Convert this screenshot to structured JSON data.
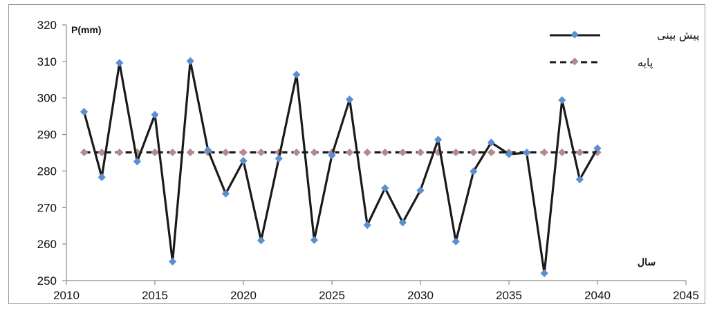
{
  "chart_data": {
    "type": "line",
    "title": "",
    "xlabel": "سال",
    "ylabel": "P(mm)",
    "xlim": [
      2010,
      2045
    ],
    "ylim": [
      250,
      320
    ],
    "xticks": [
      2010,
      2015,
      2020,
      2025,
      2030,
      2035,
      2040,
      2045
    ],
    "yticks": [
      250,
      260,
      270,
      280,
      290,
      300,
      310,
      320
    ],
    "grid": false,
    "legend_position": "top-right",
    "series": [
      {
        "name": "پیش بینی",
        "line_color": "#1a1a1a",
        "marker_color": "#5b8fd0",
        "line_style": "solid",
        "x": [
          2011,
          2012,
          2013,
          2014,
          2015,
          2016,
          2017,
          2018,
          2019,
          2020,
          2021,
          2022,
          2023,
          2024,
          2025,
          2026,
          2027,
          2028,
          2029,
          2030,
          2031,
          2032,
          2033,
          2034,
          2035,
          2036,
          2037,
          2038,
          2039,
          2040
        ],
        "values": [
          296.2,
          278.3,
          309.6,
          282.6,
          295.4,
          255.2,
          310.1,
          285.7,
          273.8,
          282.8,
          261.0,
          283.4,
          306.4,
          261.1,
          284.3,
          299.6,
          265.2,
          275.3,
          265.9,
          274.7,
          288.6,
          260.7,
          279.9,
          287.8,
          284.6,
          285.0,
          252.0,
          299.4,
          277.7,
          286.2
        ]
      },
      {
        "name": "پایه",
        "line_color": "#1a1a1a",
        "marker_color": "#b38a94",
        "line_style": "dashed",
        "x": [
          2011,
          2012,
          2013,
          2014,
          2015,
          2016,
          2017,
          2018,
          2019,
          2020,
          2021,
          2022,
          2023,
          2024,
          2025,
          2026,
          2027,
          2028,
          2029,
          2030,
          2031,
          2032,
          2033,
          2034,
          2035,
          2036,
          2037,
          2038,
          2039,
          2040
        ],
        "values": [
          285.1,
          285.1,
          285.1,
          285.1,
          285.1,
          285.1,
          285.1,
          285.1,
          285.1,
          285.1,
          285.1,
          285.1,
          285.1,
          285.1,
          285.1,
          285.1,
          285.1,
          285.1,
          285.1,
          285.1,
          285.1,
          285.1,
          285.1,
          285.1,
          285.1,
          285.1,
          285.1,
          285.1,
          285.1,
          285.1
        ]
      }
    ]
  }
}
